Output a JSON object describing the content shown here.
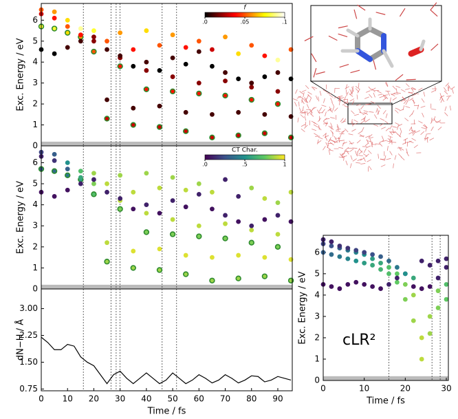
{
  "chart_data": [
    {
      "type": "scatter",
      "ylabel": "Exc. Energy / eV",
      "xlim": [
        0,
        95.5
      ],
      "ylim": [
        0,
        6.8
      ],
      "yticks": [
        0,
        1,
        2,
        3,
        4,
        5,
        6
      ],
      "band": [
        0,
        0.2
      ],
      "vlines": [
        16,
        26.5,
        28.5,
        30,
        46,
        51.5
      ],
      "colorbar": {
        "label": "f",
        "colormap": "hot",
        "lim": [
          0,
          0.1
        ],
        "ticks": [
          {
            "value": 0,
            "label": ".0"
          },
          {
            "value": 0.05,
            "label": ".05"
          },
          {
            "value": 0.1,
            "label": ".1"
          }
        ]
      },
      "x": [
        0,
        5,
        10,
        15,
        20,
        25,
        30,
        35,
        40,
        45,
        50,
        55,
        60,
        65,
        70,
        75,
        80,
        85,
        90,
        95
      ],
      "series": [
        {
          "edgecolor": "#2e8b2e",
          "values": [
            5.7,
            5.6,
            5.4,
            5.2,
            4.5,
            1.3,
            3.8,
            1.0,
            2.7,
            0.9,
            2.6,
            0.7,
            2.5,
            0.4,
            2.4,
            0.5,
            2.2,
            0.6,
            2.0,
            0.4
          ],
          "color_values": [
            0.08,
            0.08,
            0.07,
            0.06,
            0.05,
            0.03,
            0.04,
            0.03,
            0.04,
            0.03,
            0.04,
            0.03,
            0.04,
            0.03,
            0.04,
            0.03,
            0.04,
            0.03,
            0.04,
            0.03
          ]
        },
        {
          "values": [
            6.3,
            6.1,
            5.7,
            5.3,
            5.0,
            2.2,
            4.2,
            1.8,
            3.6,
            1.9,
            3.3,
            1.6,
            3.0,
            1.5,
            3.1,
            1.6,
            2.8,
            1.5,
            2.6,
            1.4
          ],
          "color_values": [
            0.03,
            0.04,
            0.05,
            0.04,
            0.02,
            0.01,
            0.02,
            0.01,
            0.02,
            0.01,
            0.02,
            0.01,
            0.02,
            0.01,
            0.02,
            0.01,
            0.02,
            0.01,
            0.02,
            0.01
          ]
        },
        {
          "values": [
            4.6,
            4.4,
            4.7,
            5.0,
            5.2,
            4.6,
            4.3,
            3.8,
            4.0,
            3.6,
            4.2,
            3.9,
            4.5,
            3.8,
            3.5,
            3.2,
            3.0,
            3.3,
            3.5,
            3.2
          ],
          "color_values": [
            0.0,
            0.0,
            0.01,
            0.01,
            0.02,
            0.01,
            0.01,
            0.0,
            0.01,
            0.0,
            0.01,
            0.0,
            0.01,
            0.0,
            0.01,
            0.0,
            0.01,
            0.0,
            0.01,
            0.0
          ]
        },
        {
          "values": [
            6.5,
            6.4,
            6.0,
            5.6,
            5.5,
            5.0,
            5.4,
            4.6,
            5.5,
            4.8,
            5.3,
            4.7,
            5.0,
            4.6,
            5.2,
            4.4,
            4.8,
            4.3,
            4.1,
            4.6
          ],
          "color_values": [
            0.05,
            0.06,
            0.07,
            0.09,
            0.08,
            0.05,
            0.06,
            0.04,
            0.07,
            0.05,
            0.06,
            0.04,
            0.05,
            0.03,
            0.06,
            0.07,
            0.05,
            0.04,
            0.09,
            0.05
          ]
        }
      ]
    },
    {
      "type": "scatter",
      "ylabel": "Exc. Energy / eV",
      "xlim": [
        0,
        95.5
      ],
      "ylim": [
        0,
        6.8
      ],
      "yticks": [
        0,
        1,
        2,
        3,
        4,
        5,
        6
      ],
      "band": [
        0,
        0.2
      ],
      "vlines": [
        16,
        26.5,
        28.5,
        30,
        46,
        51.5
      ],
      "colorbar": {
        "label": "CT Char.",
        "colormap": "viridis",
        "lim": [
          0,
          1
        ],
        "ticks": [
          {
            "value": 0,
            "label": ".0"
          },
          {
            "value": 0.5,
            "label": ".5"
          },
          1.0
        ]
      },
      "x": [
        0,
        5,
        10,
        15,
        20,
        25,
        30,
        35,
        40,
        45,
        50,
        55,
        60,
        65,
        70,
        75,
        80,
        85,
        90,
        95
      ],
      "series": [
        {
          "edgecolor": "#2e8b2e",
          "values": [
            5.7,
            5.6,
            5.4,
            5.2,
            4.5,
            1.3,
            3.8,
            1.0,
            2.7,
            0.9,
            2.6,
            0.7,
            2.5,
            0.4,
            2.4,
            0.5,
            2.2,
            0.6,
            2.0,
            0.4
          ],
          "color_values": [
            0.3,
            0.35,
            0.4,
            0.55,
            0.7,
            0.85,
            0.8,
            0.85,
            0.8,
            0.85,
            0.8,
            0.85,
            0.8,
            0.85,
            0.8,
            0.85,
            0.8,
            0.85,
            0.8,
            0.85
          ]
        },
        {
          "values": [
            6.3,
            6.1,
            5.7,
            5.3,
            5.0,
            2.2,
            4.2,
            1.8,
            3.6,
            1.9,
            3.3,
            1.6,
            3.0,
            1.5,
            3.1,
            1.6,
            2.8,
            1.5,
            2.6,
            1.4
          ],
          "color_values": [
            0.1,
            0.15,
            0.3,
            0.6,
            0.8,
            0.9,
            0.9,
            0.95,
            0.9,
            0.95,
            0.9,
            0.95,
            0.9,
            0.95,
            0.9,
            0.95,
            0.9,
            0.95,
            0.9,
            0.95
          ]
        },
        {
          "values": [
            4.6,
            4.4,
            4.7,
            5.0,
            5.2,
            4.6,
            4.3,
            3.8,
            4.0,
            3.6,
            4.2,
            3.9,
            4.5,
            3.8,
            3.5,
            3.2,
            3.0,
            3.3,
            3.5,
            3.2
          ],
          "color_values": [
            0.05,
            0.05,
            0.05,
            0.1,
            0.1,
            0.1,
            0.1,
            0.05,
            0.1,
            0.05,
            0.1,
            0.05,
            0.1,
            0.05,
            0.1,
            0.05,
            0.1,
            0.05,
            0.1,
            0.05
          ]
        },
        {
          "values": [
            6.5,
            6.4,
            6.0,
            5.6,
            5.5,
            5.0,
            5.4,
            4.6,
            5.5,
            4.8,
            5.3,
            4.7,
            5.0,
            4.6,
            5.2,
            4.4,
            4.8,
            4.3,
            4.1,
            4.6
          ],
          "color_values": [
            0.2,
            0.3,
            0.5,
            0.7,
            0.85,
            0.9,
            0.85,
            0.9,
            0.85,
            0.9,
            0.85,
            0.9,
            0.85,
            0.9,
            0.1,
            0.1,
            0.85,
            0.9,
            0.85,
            0.9
          ]
        }
      ]
    },
    {
      "type": "line",
      "ylabel": "dN−H / Å",
      "xlabel": "Time / fs",
      "color": "#000000",
      "xlim": [
        0,
        95.5
      ],
      "ylim": [
        0.7,
        3.55
      ],
      "yticks": [
        0.75,
        {
          "value": 1.5,
          "label": "1.50"
        },
        2.25,
        {
          "value": 3.0,
          "label": "3.00"
        }
      ],
      "xticks": [
        0,
        10,
        20,
        30,
        40,
        50,
        60,
        70,
        80,
        90
      ],
      "vlines": [
        16,
        26.5,
        28.5,
        30,
        46,
        51.5
      ],
      "x": [
        0,
        2.5,
        5,
        7.5,
        10,
        12.5,
        15,
        17.5,
        20,
        22.5,
        25,
        27.5,
        30,
        32.5,
        35,
        37.5,
        40,
        42.5,
        45,
        47.5,
        50,
        52.5,
        55,
        57.5,
        60,
        62.5,
        65,
        67.5,
        70,
        72.5,
        75,
        77.5,
        80,
        82.5,
        85,
        87.5,
        90,
        92.5,
        95
      ],
      "values": [
        2.2,
        2.05,
        1.85,
        1.85,
        2.0,
        1.95,
        1.65,
        1.5,
        1.4,
        1.15,
        0.9,
        1.15,
        1.25,
        1.05,
        0.9,
        1.05,
        1.2,
        1.05,
        0.9,
        1.0,
        1.2,
        1.05,
        0.9,
        1.0,
        1.15,
        1.05,
        0.92,
        1.0,
        1.15,
        1.05,
        0.92,
        1.0,
        1.12,
        1.1,
        0.95,
        1.0,
        1.1,
        1.05,
        1.0
      ]
    },
    {
      "type": "scatter",
      "ylabel": "Exc. Energy / eV",
      "xlabel": "Time / fs",
      "annotation": "cLR²",
      "xlim": [
        0,
        30.5
      ],
      "ylim": [
        0,
        6.8
      ],
      "yticks": [
        0,
        1,
        2,
        3,
        4,
        5,
        6
      ],
      "xticks": [
        0,
        10,
        20,
        30
      ],
      "band": [
        0,
        0.2
      ],
      "vlines": [
        16,
        26.5,
        28.5
      ],
      "colormap": "viridis",
      "clim": [
        0,
        1
      ],
      "x": [
        0,
        2,
        4,
        6,
        8,
        10,
        12,
        14,
        16,
        18,
        20,
        22,
        24,
        26,
        28,
        30
      ],
      "series": [
        {
          "values": [
            6.0,
            5.9,
            5.8,
            5.7,
            5.6,
            5.5,
            5.4,
            5.2,
            5.0,
            4.6,
            3.8,
            2.8,
            1.0,
            2.2,
            3.4,
            3.8
          ],
          "color_values": [
            0.3,
            0.35,
            0.4,
            0.45,
            0.5,
            0.55,
            0.6,
            0.65,
            0.7,
            0.75,
            0.8,
            0.85,
            0.9,
            0.85,
            0.8,
            0.75
          ]
        },
        {
          "values": [
            6.4,
            6.3,
            6.2,
            6.1,
            6.0,
            5.9,
            5.7,
            5.5,
            5.3,
            5.0,
            4.5,
            4.0,
            2.0,
            3.0,
            4.2,
            4.5
          ],
          "color_values": [
            0.2,
            0.25,
            0.3,
            0.4,
            0.45,
            0.5,
            0.55,
            0.6,
            0.7,
            0.75,
            0.8,
            0.85,
            0.9,
            0.85,
            0.8,
            0.7
          ]
        },
        {
          "values": [
            4.5,
            4.4,
            4.3,
            4.5,
            4.6,
            4.5,
            4.4,
            4.3,
            4.5,
            4.8,
            5.0,
            4.4,
            4.3,
            4.4,
            4.8,
            5.3
          ],
          "color_values": [
            0.05,
            0.05,
            0.05,
            0.05,
            0.05,
            0.05,
            0.05,
            0.05,
            0.1,
            0.1,
            0.1,
            0.05,
            0.05,
            0.05,
            0.1,
            0.1
          ]
        },
        {
          "values": [
            6.6,
            6.5,
            6.3,
            6.2,
            6.1,
            6.0,
            5.9,
            5.8,
            5.6,
            5.3,
            5.0,
            4.8,
            5.6,
            5.4,
            5.6,
            5.7
          ],
          "color_values": [
            0.1,
            0.1,
            0.15,
            0.15,
            0.2,
            0.2,
            0.25,
            0.3,
            0.35,
            0.4,
            0.5,
            0.6,
            0.1,
            0.1,
            0.1,
            0.1
          ]
        }
      ]
    }
  ]
}
